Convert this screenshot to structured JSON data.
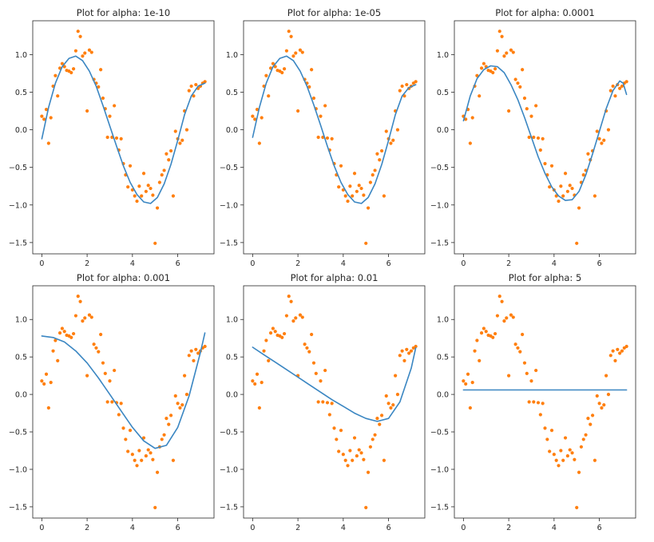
{
  "figure": {
    "background": "#ffffff",
    "grid": "off",
    "legend": "none",
    "colors": {
      "fit_line": "#3a86c2",
      "data_points": "#ff7f0e",
      "axes": "#262626"
    }
  },
  "chart_data": [
    {
      "type": "scatter",
      "title": "Plot for alpha: 1e-10",
      "xlabel": "",
      "ylabel": "",
      "xlim": [
        -0.4,
        7.6
      ],
      "ylim": [
        -1.65,
        1.45
      ],
      "xticks": [
        0,
        2,
        4,
        6
      ],
      "xtick_labels": [
        "0",
        "2",
        "4",
        "6"
      ],
      "yticks": [
        1.0,
        0.5,
        0.0,
        -0.5,
        -1.0,
        -1.5
      ],
      "ytick_labels": [
        "1.0",
        "0.5",
        "0.0",
        "−0.5",
        "−1.0",
        "−1.5"
      ],
      "fit": {
        "x": [
          0,
          0.3,
          0.6,
          0.9,
          1.2,
          1.5,
          1.8,
          2.1,
          2.4,
          2.7,
          3.0,
          3.3,
          3.6,
          3.9,
          4.2,
          4.5,
          4.8,
          5.1,
          5.4,
          5.7,
          6.0,
          6.3,
          6.6,
          6.9,
          7.2
        ],
        "y": [
          -0.12,
          0.3,
          0.62,
          0.84,
          0.95,
          0.98,
          0.92,
          0.78,
          0.58,
          0.32,
          0.05,
          -0.22,
          -0.48,
          -0.7,
          -0.86,
          -0.96,
          -0.98,
          -0.9,
          -0.72,
          -0.46,
          -0.14,
          0.2,
          0.45,
          0.58,
          0.62
        ]
      }
    },
    {
      "type": "scatter",
      "title": "Plot for alpha: 1e-05",
      "xlabel": "",
      "ylabel": "",
      "xlim": [
        -0.4,
        7.6
      ],
      "ylim": [
        -1.65,
        1.45
      ],
      "xticks": [
        0,
        2,
        4,
        6
      ],
      "xtick_labels": [
        "0",
        "2",
        "4",
        "6"
      ],
      "yticks": [
        1.0,
        0.5,
        0.0,
        -0.5,
        -1.0,
        -1.5
      ],
      "ytick_labels": [
        "1.0",
        "0.5",
        "0.0",
        "−0.5",
        "−1.0",
        "−1.5"
      ],
      "fit": {
        "x": [
          0,
          0.3,
          0.6,
          0.9,
          1.2,
          1.5,
          1.8,
          2.1,
          2.4,
          2.7,
          3.0,
          3.3,
          3.6,
          3.9,
          4.2,
          4.5,
          4.8,
          5.1,
          5.4,
          5.7,
          6.0,
          6.3,
          6.6,
          6.9,
          7.2
        ],
        "y": [
          -0.1,
          0.3,
          0.62,
          0.84,
          0.95,
          0.98,
          0.92,
          0.78,
          0.58,
          0.33,
          0.06,
          -0.22,
          -0.48,
          -0.7,
          -0.86,
          -0.96,
          -0.98,
          -0.9,
          -0.72,
          -0.46,
          -0.14,
          0.2,
          0.45,
          0.56,
          0.6
        ]
      }
    },
    {
      "type": "scatter",
      "title": "Plot for alpha: 0.0001",
      "xlabel": "",
      "ylabel": "",
      "xlim": [
        -0.4,
        7.6
      ],
      "ylim": [
        -1.65,
        1.45
      ],
      "xticks": [
        0,
        2,
        4,
        6
      ],
      "xtick_labels": [
        "0",
        "2",
        "4",
        "6"
      ],
      "yticks": [
        1.0,
        0.5,
        0.0,
        -0.5,
        -1.0,
        -1.5
      ],
      "ytick_labels": [
        "1.0",
        "0.5",
        "0.0",
        "−0.5",
        "−1.0",
        "−1.5"
      ],
      "fit": {
        "x": [
          0,
          0.3,
          0.6,
          0.9,
          1.2,
          1.5,
          1.8,
          2.1,
          2.4,
          2.7,
          3.0,
          3.3,
          3.6,
          3.9,
          4.2,
          4.5,
          4.8,
          5.1,
          5.4,
          5.7,
          6.0,
          6.3,
          6.6,
          6.9,
          7.05,
          7.2
        ],
        "y": [
          0.12,
          0.45,
          0.68,
          0.8,
          0.85,
          0.84,
          0.76,
          0.6,
          0.4,
          0.16,
          -0.1,
          -0.36,
          -0.58,
          -0.76,
          -0.88,
          -0.94,
          -0.93,
          -0.82,
          -0.6,
          -0.32,
          -0.02,
          0.28,
          0.52,
          0.65,
          0.62,
          0.47
        ]
      }
    },
    {
      "type": "scatter",
      "title": "Plot for alpha: 0.001",
      "xlabel": "",
      "ylabel": "",
      "xlim": [
        -0.4,
        7.6
      ],
      "ylim": [
        -1.65,
        1.45
      ],
      "xticks": [
        0,
        2,
        4,
        6
      ],
      "xtick_labels": [
        "0",
        "2",
        "4",
        "6"
      ],
      "yticks": [
        1.0,
        0.5,
        0.0,
        -0.5,
        -1.0,
        -1.5
      ],
      "ytick_labels": [
        "1.0",
        "0.5",
        "0.0",
        "−0.5",
        "−1.0",
        "−1.5"
      ],
      "fit": {
        "x": [
          0,
          0.5,
          1.0,
          1.5,
          2.0,
          2.5,
          3.0,
          3.5,
          4.0,
          4.5,
          5.0,
          5.5,
          6.0,
          6.5,
          7.0,
          7.2
        ],
        "y": [
          0.78,
          0.76,
          0.7,
          0.58,
          0.42,
          0.22,
          0.0,
          -0.22,
          -0.44,
          -0.62,
          -0.72,
          -0.68,
          -0.44,
          -0.02,
          0.56,
          0.82
        ]
      }
    },
    {
      "type": "scatter",
      "title": "Plot for alpha: 0.01",
      "xlabel": "",
      "ylabel": "",
      "xlim": [
        -0.4,
        7.6
      ],
      "ylim": [
        -1.65,
        1.45
      ],
      "xticks": [
        0,
        2,
        4,
        6
      ],
      "xtick_labels": [
        "0",
        "2",
        "4",
        "6"
      ],
      "yticks": [
        1.0,
        0.5,
        0.0,
        -0.5,
        -1.0,
        -1.5
      ],
      "ytick_labels": [
        "1.0",
        "0.5",
        "0.0",
        "−0.5",
        "−1.0",
        "−1.5"
      ],
      "fit": {
        "x": [
          0,
          0.5,
          1.0,
          1.5,
          2.0,
          2.5,
          3.0,
          3.5,
          4.0,
          4.5,
          5.0,
          5.5,
          6.0,
          6.5,
          7.0,
          7.2
        ],
        "y": [
          0.63,
          0.53,
          0.43,
          0.33,
          0.23,
          0.13,
          0.03,
          -0.07,
          -0.16,
          -0.25,
          -0.32,
          -0.36,
          -0.32,
          -0.1,
          0.35,
          0.62
        ]
      }
    },
    {
      "type": "scatter",
      "title": "Plot for alpha: 5",
      "xlabel": "",
      "ylabel": "",
      "xlim": [
        -0.4,
        7.6
      ],
      "ylim": [
        -1.65,
        1.45
      ],
      "xticks": [
        0,
        2,
        4,
        6
      ],
      "xtick_labels": [
        "0",
        "2",
        "4",
        "6"
      ],
      "yticks": [
        1.0,
        0.5,
        0.0,
        -0.5,
        -1.0,
        -1.5
      ],
      "ytick_labels": [
        "1.0",
        "0.5",
        "0.0",
        "−0.5",
        "−1.0",
        "−1.5"
      ],
      "fit": {
        "x": [
          0,
          7.2
        ],
        "y": [
          0.06,
          0.06
        ]
      }
    }
  ],
  "shared_points": {
    "x": [
      0.0,
      0.1,
      0.2,
      0.3,
      0.4,
      0.5,
      0.6,
      0.7,
      0.8,
      0.9,
      1.0,
      1.1,
      1.2,
      1.3,
      1.4,
      1.5,
      1.6,
      1.7,
      1.8,
      1.9,
      2.0,
      2.1,
      2.2,
      2.3,
      2.4,
      2.5,
      2.6,
      2.7,
      2.8,
      2.9,
      3.0,
      3.1,
      3.2,
      3.3,
      3.4,
      3.5,
      3.6,
      3.7,
      3.8,
      3.9,
      4.0,
      4.1,
      4.2,
      4.3,
      4.4,
      4.5,
      4.6,
      4.7,
      4.8,
      4.9,
      5.0,
      5.1,
      5.2,
      5.3,
      5.4,
      5.5,
      5.6,
      5.7,
      5.8,
      5.9,
      6.0,
      6.1,
      6.2,
      6.3,
      6.4,
      6.5,
      6.6,
      6.7,
      6.8,
      6.9,
      7.0,
      7.1,
      7.2
    ],
    "y": [
      0.18,
      0.14,
      0.27,
      -0.18,
      0.16,
      0.58,
      0.72,
      0.45,
      0.82,
      0.88,
      0.84,
      0.79,
      0.78,
      0.76,
      0.81,
      1.05,
      1.31,
      1.24,
      0.98,
      1.02,
      0.25,
      1.06,
      1.03,
      0.67,
      0.62,
      0.57,
      0.8,
      0.42,
      0.28,
      -0.1,
      0.18,
      -0.1,
      0.32,
      -0.11,
      -0.27,
      -0.12,
      -0.45,
      -0.6,
      -0.76,
      -0.48,
      -0.8,
      -0.88,
      -0.95,
      -0.75,
      -0.88,
      -0.58,
      -0.82,
      -0.74,
      -0.78,
      -0.87,
      -1.51,
      -1.04,
      -0.7,
      -0.6,
      -0.54,
      -0.32,
      -0.4,
      -0.28,
      -0.88,
      -0.02,
      -0.12,
      -0.18,
      -0.14,
      0.25,
      0.0,
      0.52,
      0.58,
      0.45,
      0.6,
      0.55,
      0.58,
      0.62,
      0.64
    ]
  }
}
